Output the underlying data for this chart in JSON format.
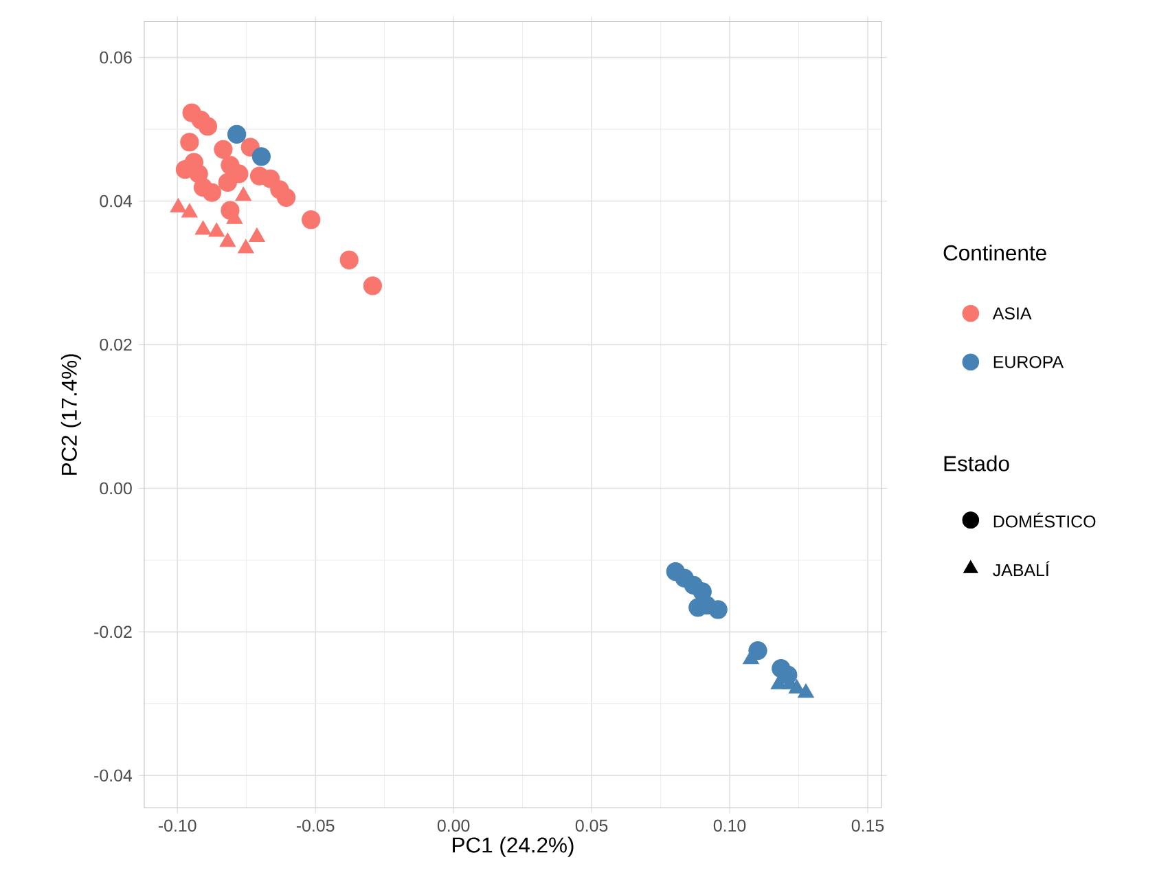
{
  "chart_data": {
    "type": "scatter",
    "xlabel": "PC1 (24.2%)",
    "ylabel": "PC2 (17.4%)",
    "legend_title": "Continente",
    "legend": "right",
    "grid": true,
    "xlim": [
      -0.112,
      0.155
    ],
    "ylim": [
      -0.0445,
      0.065
    ],
    "xticks": [
      {
        "value": -0.1,
        "label": "-0.10"
      },
      {
        "value": -0.05,
        "label": "-0.05"
      },
      {
        "value": 0,
        "label": "0.00"
      },
      {
        "value": 0.05,
        "label": "0.05"
      },
      {
        "value": 0.1,
        "label": "0.10"
      },
      {
        "value": 0.15,
        "label": "0.15"
      }
    ],
    "yticks": [
      {
        "value": -0.04,
        "label": "-0.04"
      },
      {
        "value": -0.02,
        "label": "-0.02"
      },
      {
        "value": 0,
        "label": "0.00"
      },
      {
        "value": 0.02,
        "label": "0.02"
      },
      {
        "value": 0.04,
        "label": "0.04"
      },
      {
        "value": 0.06,
        "label": "0.06"
      }
    ],
    "annotations": [
      "Estado",
      "DOMÉSTICO",
      "JABALÍ"
    ],
    "series": [
      {
        "name": "ASIA",
        "color": "#f8766d",
        "marker": "circle",
        "x": [
          -0.0948,
          -0.0915,
          -0.089,
          -0.0956,
          -0.0834,
          -0.0736,
          -0.0972,
          -0.094,
          -0.0923,
          -0.0809,
          -0.0777,
          -0.0703,
          -0.0663,
          -0.0907,
          -0.0818,
          -0.063,
          -0.0606,
          -0.0516,
          -0.0378,
          -0.0293,
          -0.0875,
          -0.0809
        ],
        "values": [
          0.0523,
          0.0513,
          0.0504,
          0.0482,
          0.0472,
          0.0475,
          0.0444,
          0.0454,
          0.0438,
          0.045,
          0.0438,
          0.0435,
          0.0431,
          0.0419,
          0.0426,
          0.0416,
          0.0405,
          0.0374,
          0.0318,
          0.0282,
          0.0412,
          0.0387
        ]
      },
      {
        "name": "EUROPA",
        "color": "#4682b4",
        "marker": "circle",
        "x": [
          -0.0785,
          -0.0696,
          0.0804,
          0.0836,
          0.0869,
          0.0901,
          0.0885,
          0.0958,
          0.0917,
          0.1102,
          0.1186,
          0.1211
        ],
        "values": [
          0.0493,
          0.0462,
          -0.0116,
          -0.0125,
          -0.0135,
          -0.0144,
          -0.0166,
          -0.0169,
          -0.0163,
          -0.0226,
          -0.0251,
          -0.026
        ]
      },
      {
        "color": "#f8766d",
        "marker": "triangle",
        "x": [
          -0.0997,
          -0.0956,
          -0.0907,
          -0.0858,
          -0.0818,
          -0.0761,
          -0.0752,
          -0.0712,
          -0.0793
        ],
        "values": [
          0.0391,
          0.0384,
          0.036,
          0.0357,
          0.0343,
          0.0407,
          0.0334,
          0.035,
          0.0375
        ]
      },
      {
        "color": "#4682b4",
        "marker": "triangle",
        "x": [
          0.1077,
          0.1178,
          0.1219,
          0.1243,
          0.1276
        ],
        "values": [
          -0.0238,
          -0.0273,
          -0.0273,
          -0.0279,
          -0.0285
        ]
      }
    ]
  }
}
